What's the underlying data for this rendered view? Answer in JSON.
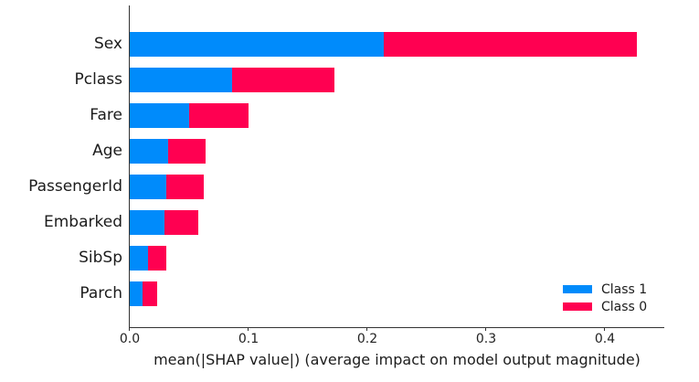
{
  "chart_data": {
    "type": "bar",
    "orientation": "horizontal",
    "stacked": true,
    "title": "",
    "xlabel": "mean(|SHAP value|) (average impact on model output magnitude)",
    "ylabel": "",
    "categories": [
      "Sex",
      "Pclass",
      "Fare",
      "Age",
      "PassengerId",
      "Embarked",
      "SibSp",
      "Parch"
    ],
    "series": [
      {
        "name": "Class 1",
        "color": "#008bfb",
        "values": [
          0.214,
          0.086,
          0.05,
          0.032,
          0.031,
          0.029,
          0.0155,
          0.011
        ]
      },
      {
        "name": "Class 0",
        "color": "#ff0051",
        "values": [
          0.213,
          0.086,
          0.05,
          0.032,
          0.031,
          0.029,
          0.0155,
          0.012
        ]
      }
    ],
    "xlim": [
      0,
      0.45
    ],
    "xticks": [
      0.0,
      0.1,
      0.2,
      0.3,
      0.4
    ],
    "xtick_labels": [
      "0.0",
      "0.1",
      "0.2",
      "0.3",
      "0.4"
    ],
    "grid": false,
    "legend_position": "lower right",
    "spines": {
      "left": true,
      "bottom": true,
      "top": false,
      "right": false
    }
  },
  "colors": {
    "class1_blue": "#008bfb",
    "class0_red": "#ff0051",
    "text": "#1c1c1c",
    "spine": "#333333",
    "background": "#ffffff"
  }
}
